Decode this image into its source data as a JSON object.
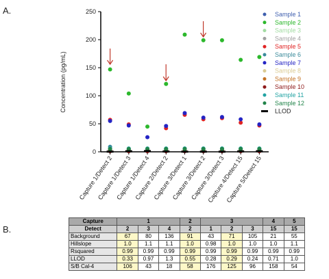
{
  "labels": {
    "a": "A.",
    "b": "B."
  },
  "chart_data": {
    "type": "scatter",
    "y_label": "Concentration (pg/mL)",
    "categories": [
      "Capture 1/Detect 2",
      "Capture 1/Detect 3",
      "Capture 1/Detect 4",
      "Capture 2/Detect 2",
      "Capture 3/Detect 1",
      "Capture 3/Detect 2",
      "Capture 3/Detect 3",
      "Capture 4/Detect 15",
      "Capture 5/Detect 15"
    ],
    "ylim": [
      0,
      250
    ],
    "yticks": [
      0,
      50,
      100,
      150,
      200,
      250
    ],
    "series": [
      {
        "name": "Sample 1",
        "color": "#3f5fae",
        "marker": "circle",
        "values": [
          2,
          2,
          2,
          2,
          2,
          2,
          2,
          2,
          2
        ]
      },
      {
        "name": "Sample 2",
        "color": "#2cb82c",
        "marker": "circle",
        "values": [
          147,
          104,
          45,
          121,
          209,
          199,
          199,
          164,
          169
        ]
      },
      {
        "name": "Sample 3",
        "color": "#a3dba3",
        "marker": "circle",
        "values": [
          5,
          5,
          5,
          5,
          6,
          6,
          6,
          6,
          6
        ]
      },
      {
        "name": "Sample 4",
        "color": "#a0a0a0",
        "marker": "circle",
        "values": [
          4,
          4,
          4,
          4,
          4,
          4,
          4,
          4,
          4
        ]
      },
      {
        "name": "Sample 5",
        "color": "#e02424",
        "marker": "circle",
        "values": [
          57,
          49,
          null,
          42,
          66,
          58,
          60,
          52,
          47
        ]
      },
      {
        "name": "Sample 6",
        "color": "#3b8b9b",
        "marker": "circle",
        "values": [
          9,
          4,
          4,
          4,
          5,
          5,
          5,
          5,
          5
        ]
      },
      {
        "name": "Sample 7",
        "color": "#2424c4",
        "marker": "circle",
        "values": [
          55,
          47,
          26,
          46,
          69,
          61,
          62,
          58,
          49
        ]
      },
      {
        "name": "Sample 8",
        "color": "#dbcb93",
        "marker": "circle",
        "values": [
          3,
          3,
          3,
          3,
          3,
          3,
          3,
          3,
          3
        ]
      },
      {
        "name": "Sample 9",
        "color": "#c47224",
        "marker": "circle",
        "values": [
          2,
          2,
          2,
          2,
          2,
          2,
          2,
          2,
          2
        ]
      },
      {
        "name": "Sample 10",
        "color": "#8e1a1a",
        "marker": "circle",
        "values": [
          1,
          1,
          1,
          1,
          1,
          1,
          1,
          1,
          1
        ]
      },
      {
        "name": "Sample 11",
        "color": "#22a3a3",
        "marker": "circle",
        "values": [
          6,
          6,
          6,
          6,
          6,
          6,
          6,
          6,
          6
        ]
      },
      {
        "name": "Sample 12",
        "color": "#22844a",
        "marker": "circle",
        "values": [
          5,
          5,
          5,
          5,
          5,
          5,
          5,
          5,
          5
        ]
      },
      {
        "name": "LLOD",
        "color": "#000000",
        "marker": "dash",
        "values": [
          0.33,
          0.97,
          1.3,
          0.55,
          0.28,
          0.29,
          0.24,
          0.71,
          1.0
        ]
      }
    ]
  },
  "table": {
    "capture_label": "Capture",
    "detect_label": "Detect",
    "captures": [
      {
        "capture": "1",
        "detects": [
          "2",
          "3",
          "4"
        ]
      },
      {
        "capture": "2",
        "detects": [
          "2"
        ]
      },
      {
        "capture": "3",
        "detects": [
          "1",
          "2",
          "3"
        ]
      },
      {
        "capture": "4",
        "detects": [
          "15"
        ]
      },
      {
        "capture": "5",
        "detects": [
          "15"
        ]
      }
    ],
    "rows": [
      {
        "label": "Background",
        "values": [
          "67",
          "80",
          "136",
          "91",
          "43",
          "71",
          "105",
          "21",
          "55"
        ]
      },
      {
        "label": "Hillslope",
        "values": [
          "1.0",
          "1.1",
          "1.1",
          "1.0",
          "0.98",
          "1.0",
          "1.0",
          "1.0",
          "1.1"
        ]
      },
      {
        "label": "Rsquared",
        "values": [
          "0.99",
          "0.99",
          "0.99",
          "0.99",
          "0.99",
          "0.99",
          "0.99",
          "0.99",
          "0.99"
        ]
      },
      {
        "label": "LLOD",
        "values": [
          "0.33",
          "0.97",
          "1.3",
          "0.55",
          "0.28",
          "0.29",
          "0.24",
          "0.71",
          "1.0"
        ]
      },
      {
        "label": "S/B Cal-4",
        "values": [
          "106",
          "43",
          "18",
          "58",
          "176",
          "125",
          "96",
          "158",
          "54"
        ]
      }
    ]
  }
}
